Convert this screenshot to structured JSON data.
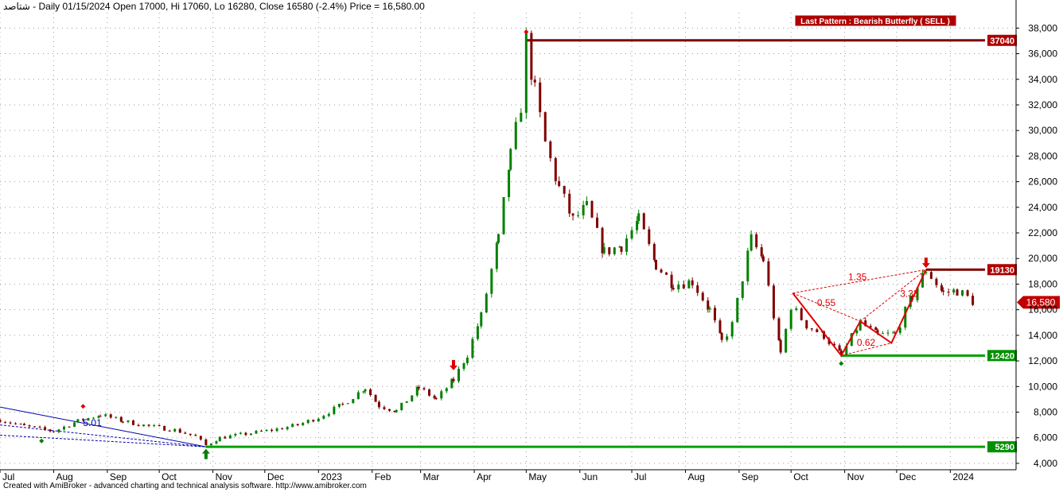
{
  "header": {
    "ticker": "شتاصد",
    "info": " - Daily 01/15/2024 Open 17000, Hi 17060, Lo 16280, Close 16580 (-2.4%)",
    "price_label": " Price = 16,580.00"
  },
  "footer": {
    "text": "Created with AmiBroker - advanced charting and technical analysis software. http://www.amibroker.com"
  },
  "colors": {
    "up": "#008000",
    "down": "#800000",
    "pattern": "#e00000",
    "resistance": "#800000",
    "support": "#00a000",
    "channel": "#0000aa",
    "current_price_bg": "#c00000"
  },
  "chart_data": {
    "type": "candlestick",
    "title": "",
    "ylim": [
      3500,
      39200
    ],
    "y_ticks": [
      4000,
      6000,
      8000,
      10000,
      12000,
      14000,
      16000,
      18000,
      20000,
      22000,
      24000,
      26000,
      28000,
      30000,
      32000,
      34000,
      36000,
      38000
    ],
    "y_tick_labels": [
      "4,000",
      "6,000",
      "8,000",
      "10,000",
      "12,000",
      "14,000",
      "16,000",
      "18,000",
      "20,000",
      "22,000",
      "24,000",
      "26,000",
      "28,000",
      "30,000",
      "32,000",
      "34,000",
      "36,000",
      "38,000"
    ],
    "x_start": "2022-07-01",
    "x_end": "2024-02-08",
    "x_ticks": [
      {
        "date": "2022-07-01",
        "label": "Jul"
      },
      {
        "date": "2022-08-01",
        "label": "Aug"
      },
      {
        "date": "2022-09-01",
        "label": "Sep"
      },
      {
        "date": "2022-10-01",
        "label": "Oct"
      },
      {
        "date": "2022-11-01",
        "label": "Nov"
      },
      {
        "date": "2022-12-01",
        "label": "Dec"
      },
      {
        "date": "2023-01-01",
        "label": "2023"
      },
      {
        "date": "2023-02-01",
        "label": "Feb"
      },
      {
        "date": "2023-03-01",
        "label": "Mar"
      },
      {
        "date": "2023-04-01",
        "label": "Apr"
      },
      {
        "date": "2023-05-01",
        "label": "May"
      },
      {
        "date": "2023-06-01",
        "label": "Jun"
      },
      {
        "date": "2023-07-01",
        "label": "Jul"
      },
      {
        "date": "2023-08-01",
        "label": "Aug"
      },
      {
        "date": "2023-09-01",
        "label": "Sep"
      },
      {
        "date": "2023-10-01",
        "label": "Oct"
      },
      {
        "date": "2023-11-01",
        "label": "Nov"
      },
      {
        "date": "2023-12-01",
        "label": "Dec"
      },
      {
        "date": "2024-01-01",
        "label": "2024"
      }
    ],
    "grid": true,
    "price_path": [
      [
        "2022-07-01",
        7400
      ],
      [
        "2022-07-15",
        6900
      ],
      [
        "2022-08-01",
        6500
      ],
      [
        "2022-08-15",
        7300
      ],
      [
        "2022-08-28",
        7800
      ],
      [
        "2022-09-10",
        7300
      ],
      [
        "2022-09-25",
        6900
      ],
      [
        "2022-10-10",
        6600
      ],
      [
        "2022-10-22",
        6100
      ],
      [
        "2022-10-28",
        5400
      ],
      [
        "2022-11-05",
        6000
      ],
      [
        "2022-11-20",
        6300
      ],
      [
        "2022-12-05",
        6600
      ],
      [
        "2022-12-20",
        7000
      ],
      [
        "2023-01-01",
        7600
      ],
      [
        "2023-01-15",
        8600
      ],
      [
        "2023-01-28",
        9900
      ],
      [
        "2023-02-05",
        8500
      ],
      [
        "2023-02-15",
        8100
      ],
      [
        "2023-02-28",
        9900
      ],
      [
        "2023-03-10",
        9000
      ],
      [
        "2023-03-20",
        10500
      ],
      [
        "2023-03-28",
        12500
      ],
      [
        "2023-04-05",
        15500
      ],
      [
        "2023-04-15",
        21500
      ],
      [
        "2023-04-22",
        28000
      ],
      [
        "2023-04-28",
        32000
      ],
      [
        "2023-05-01",
        37040
      ],
      [
        "2023-05-06",
        33000
      ],
      [
        "2023-05-12",
        29000
      ],
      [
        "2023-05-20",
        25500
      ],
      [
        "2023-05-28",
        23000
      ],
      [
        "2023-06-05",
        24000
      ],
      [
        "2023-06-15",
        20500
      ],
      [
        "2023-06-25",
        21000
      ],
      [
        "2023-07-05",
        23000
      ],
      [
        "2023-07-15",
        19500
      ],
      [
        "2023-07-25",
        18000
      ],
      [
        "2023-08-05",
        18200
      ],
      [
        "2023-08-15",
        16000
      ],
      [
        "2023-08-22",
        13500
      ],
      [
        "2023-08-28",
        14800
      ],
      [
        "2023-09-03",
        18500
      ],
      [
        "2023-09-08",
        21500
      ],
      [
        "2023-09-15",
        19900
      ],
      [
        "2023-09-25",
        12600
      ],
      [
        "2023-10-01",
        16300
      ],
      [
        "2023-10-10",
        14800
      ],
      [
        "2023-10-20",
        14000
      ],
      [
        "2023-10-30",
        12420
      ],
      [
        "2023-11-10",
        15000
      ],
      [
        "2023-11-20",
        14000
      ],
      [
        "2023-11-30",
        14100
      ],
      [
        "2023-12-10",
        17000
      ],
      [
        "2023-12-18",
        19130
      ],
      [
        "2023-12-28",
        17300
      ],
      [
        "2024-01-05",
        17500
      ],
      [
        "2024-01-15",
        16580
      ]
    ],
    "levels": [
      {
        "value": 37040,
        "label": "37040",
        "kind": "resistance",
        "from": "2023-05-01"
      },
      {
        "value": 19130,
        "label": "19130",
        "kind": "resistance",
        "from": "2023-12-18"
      },
      {
        "value": 12420,
        "label": "12420",
        "kind": "support",
        "from": "2023-10-30"
      },
      {
        "value": 5290,
        "label": "5290",
        "kind": "support",
        "from": "2022-10-28"
      }
    ],
    "current_price": {
      "value": 16580,
      "label": "16,580"
    },
    "pattern": {
      "name": "Last Pattern : Bearish Butterfly ( SELL )",
      "points": [
        {
          "date": "2023-10-02",
          "value": 17300
        },
        {
          "date": "2023-10-30",
          "value": 12420
        },
        {
          "date": "2023-11-10",
          "value": 15100
        },
        {
          "date": "2023-11-28",
          "value": 13400
        },
        {
          "date": "2023-12-18",
          "value": 19130
        }
      ],
      "ratios": [
        {
          "label": "1.35",
          "date": "2023-11-03",
          "value": 18300
        },
        {
          "label": "0.55",
          "date": "2023-10-16",
          "value": 16300
        },
        {
          "label": "3.33",
          "date": "2023-12-03",
          "value": 17000
        },
        {
          "label": "0.62",
          "date": "2023-11-08",
          "value": 13200
        }
      ]
    },
    "channel": {
      "label": "5.01",
      "lines": [
        [
          [
            "2022-07-01",
            8400
          ],
          [
            "2022-10-28",
            5290
          ]
        ],
        [
          [
            "2022-07-01",
            7000
          ],
          [
            "2022-10-28",
            5290
          ]
        ],
        [
          [
            "2022-07-01",
            6200
          ],
          [
            "2022-10-28",
            5290
          ]
        ]
      ],
      "label_date": "2022-08-18",
      "label_value": 6900
    },
    "markers": [
      {
        "date": "2022-08-18",
        "value": 8450,
        "kind": "diamond-red"
      },
      {
        "date": "2022-07-25",
        "value": 5750,
        "kind": "diamond-green"
      },
      {
        "date": "2023-05-01",
        "value": 37700,
        "kind": "diamond-red"
      },
      {
        "date": "2023-10-30",
        "value": 11800,
        "kind": "diamond-green"
      },
      {
        "date": "2022-10-28",
        "value": 4700,
        "kind": "arrow-up-green"
      },
      {
        "date": "2023-03-20",
        "value": 11700,
        "kind": "arrow-down-red"
      },
      {
        "date": "2023-12-18",
        "value": 19700,
        "kind": "arrow-down-red"
      }
    ]
  }
}
